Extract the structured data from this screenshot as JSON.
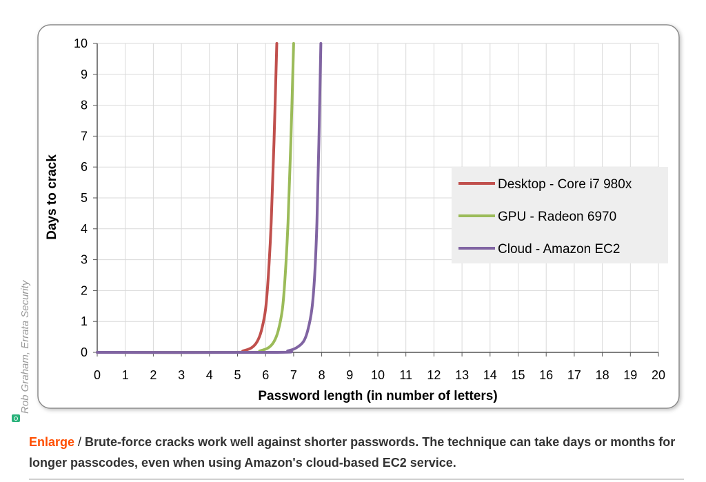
{
  "credit": {
    "author": "Rob Graham",
    "org": "Errata Security",
    "icon": "camera-icon",
    "icon_color": "#2ab27b"
  },
  "caption": {
    "enlarge_label": "Enlarge",
    "separator": " / ",
    "text": "Brute-force cracks work well against shorter passwords. The technique can take days or months for longer passcodes, even when using Amazon's cloud-based EC2 service.",
    "enlarge_color": "#ff4e00"
  },
  "chart_data": {
    "type": "line",
    "title": "",
    "xlabel": "Password length (in number of letters)",
    "ylabel": "Days to crack",
    "xlim": [
      0,
      20
    ],
    "ylim": [
      0,
      10
    ],
    "x_ticks": [
      "0",
      "1",
      "2",
      "3",
      "4",
      "5",
      "6",
      "7",
      "8",
      "9",
      "10",
      "11",
      "12",
      "13",
      "14",
      "15",
      "16",
      "17",
      "18",
      "19",
      "20"
    ],
    "y_ticks": [
      "0",
      "1",
      "2",
      "3",
      "4",
      "5",
      "6",
      "7",
      "8",
      "9",
      "10"
    ],
    "grid": true,
    "legend_position": "right",
    "series": [
      {
        "name": "Desktop - Core i7 980x",
        "color": "#c0504d",
        "x": [
          0,
          4.8,
          5.2,
          5.5,
          5.7,
          5.85,
          6.0,
          6.1,
          6.2,
          6.3,
          6.4
        ],
        "y": [
          0,
          0.0,
          0.05,
          0.15,
          0.35,
          0.7,
          1.4,
          2.5,
          4.2,
          6.8,
          10
        ]
      },
      {
        "name": "GPU - Radeon 6970",
        "color": "#9bbb59",
        "x": [
          0,
          5.4,
          5.8,
          6.1,
          6.3,
          6.45,
          6.6,
          6.7,
          6.8,
          6.9,
          7.0
        ],
        "y": [
          0,
          0.0,
          0.05,
          0.15,
          0.35,
          0.7,
          1.4,
          2.5,
          4.2,
          6.8,
          10
        ]
      },
      {
        "name": "Cloud - Amazon EC2",
        "color": "#8064a2",
        "x": [
          0,
          6.3,
          6.8,
          7.1,
          7.35,
          7.5,
          7.65,
          7.75,
          7.83,
          7.9,
          7.97
        ],
        "y": [
          0,
          0.0,
          0.05,
          0.15,
          0.35,
          0.7,
          1.4,
          2.5,
          4.2,
          6.8,
          10
        ]
      }
    ]
  }
}
